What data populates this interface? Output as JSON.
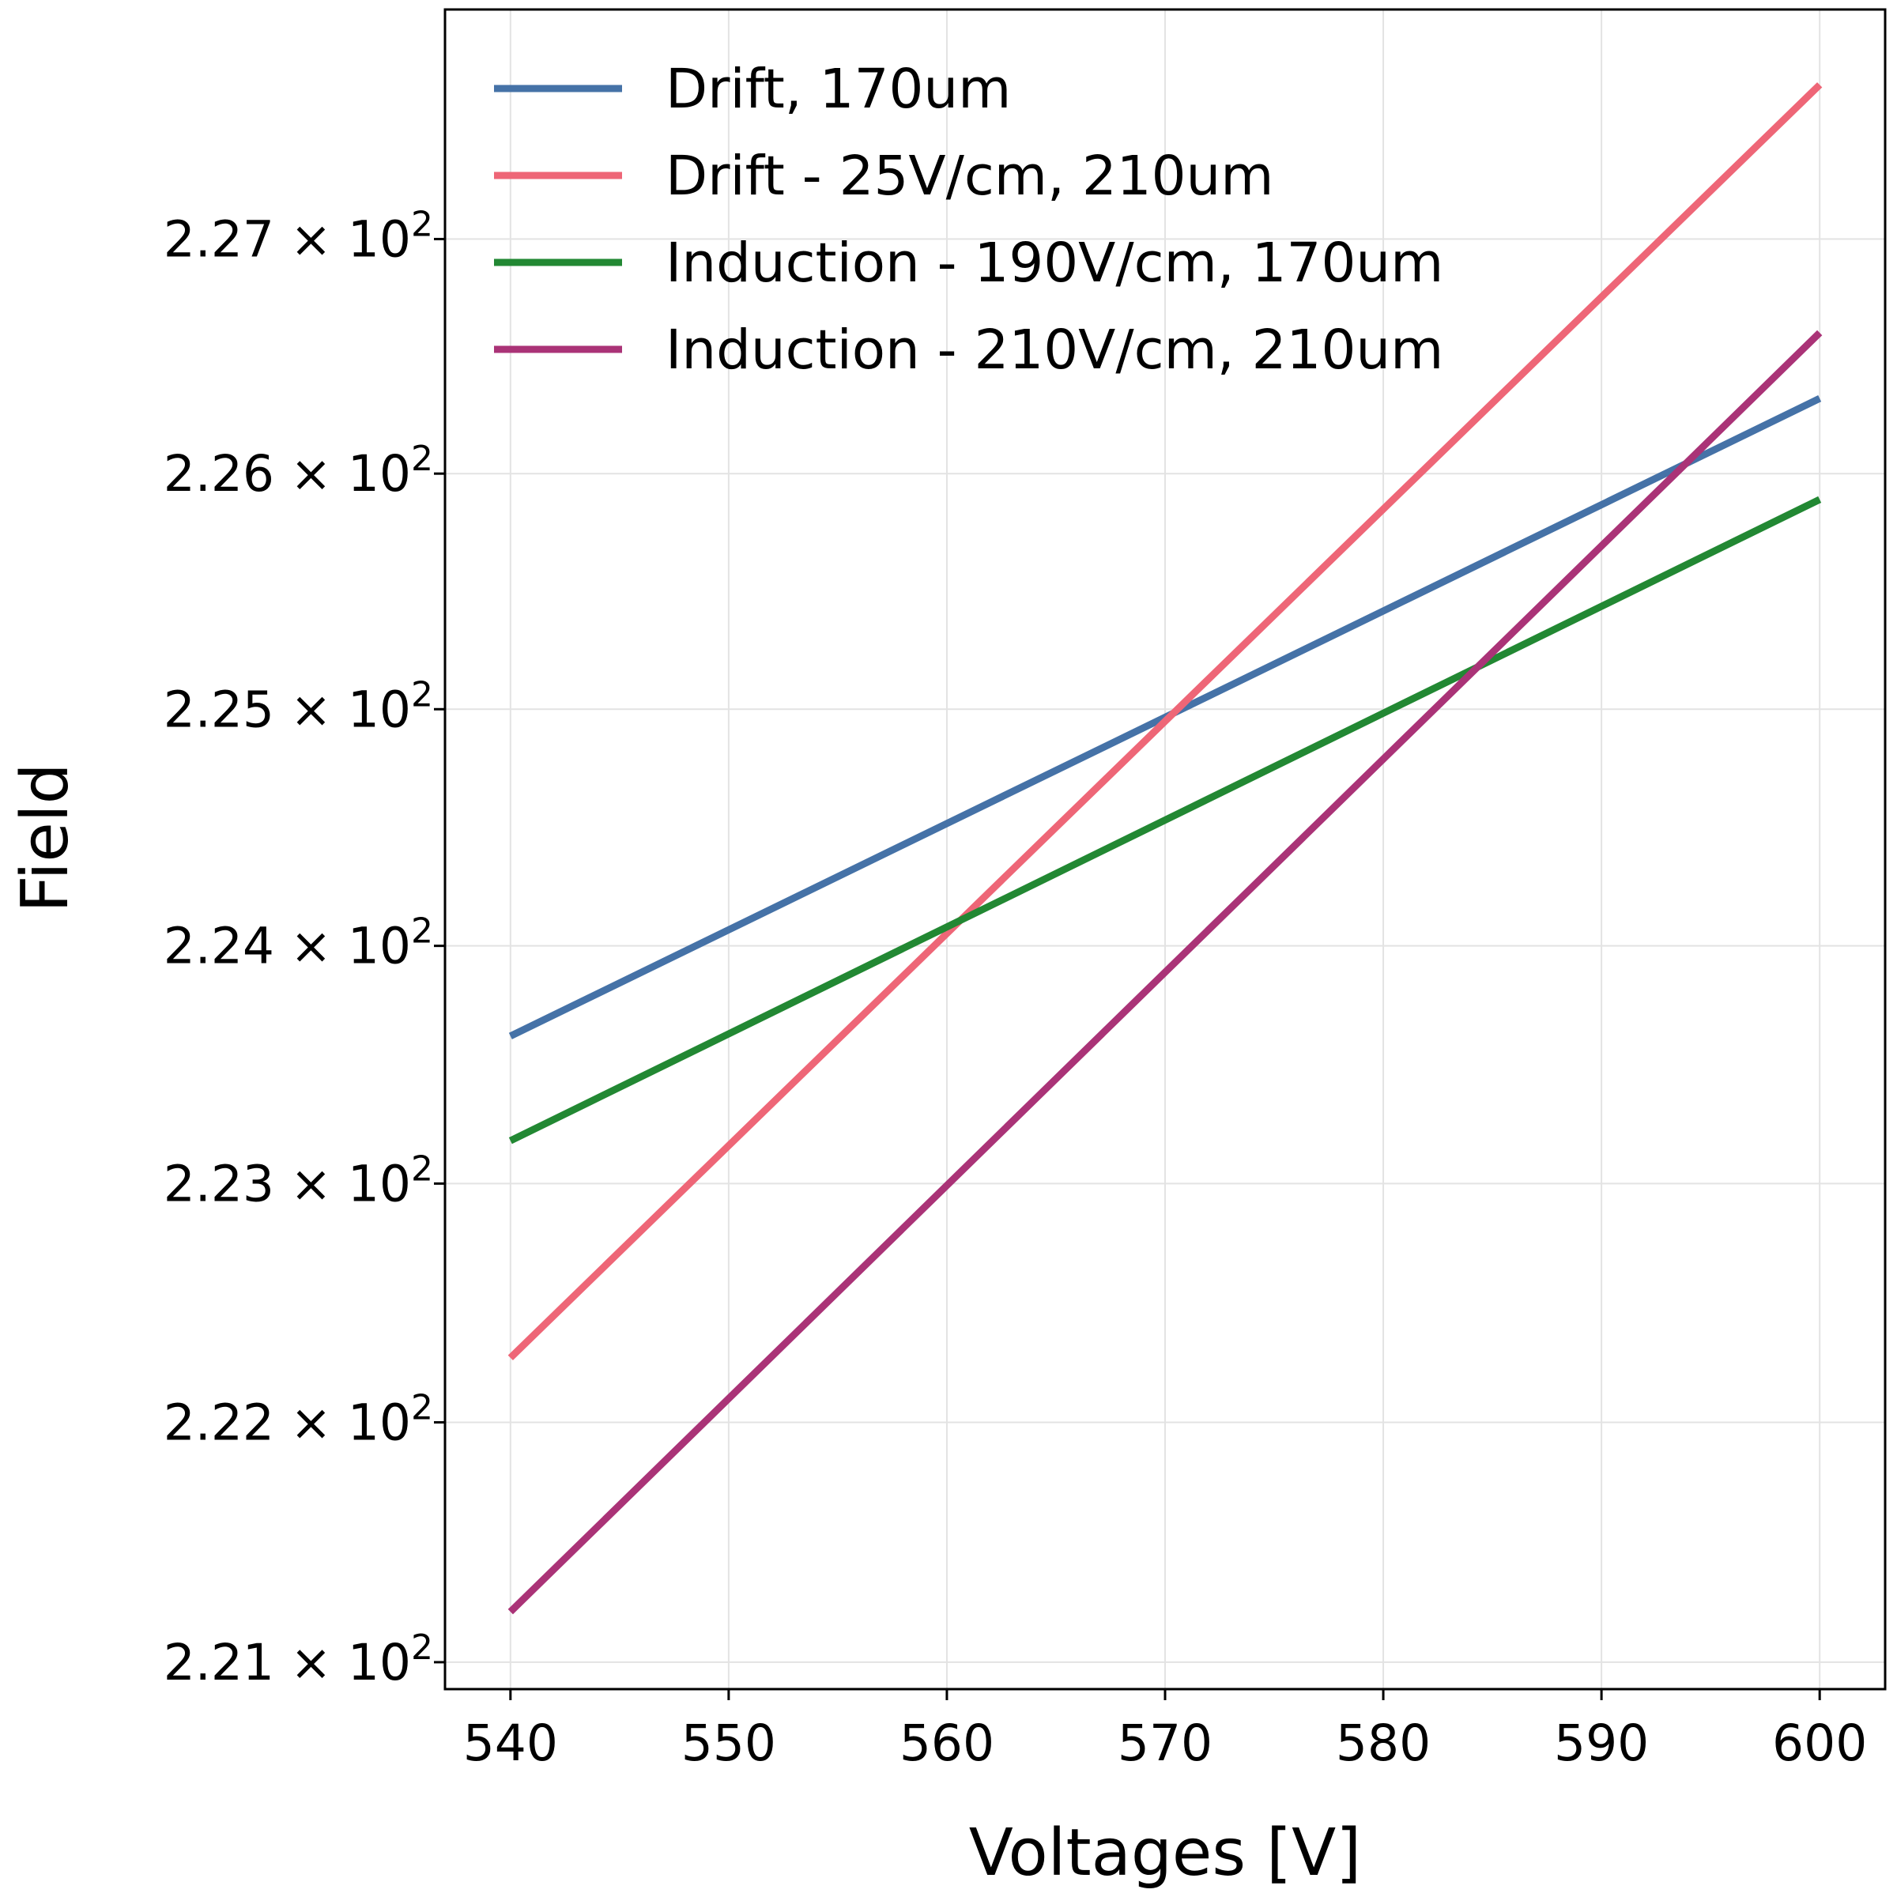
{
  "chart_data": {
    "type": "line",
    "title": "",
    "xlabel": "Voltages [V]",
    "ylabel": "Field",
    "xlim": [
      537,
      603
    ],
    "ylim": [
      220.888,
      227.983
    ],
    "yscale": "log",
    "grid": true,
    "legend_position": "top-left",
    "x_ticks": [
      540,
      550,
      560,
      570,
      580,
      590,
      600
    ],
    "y_ticks": [
      {
        "value": 221,
        "mantissa": "2.21",
        "base": "10",
        "exponent": "2"
      },
      {
        "value": 222,
        "mantissa": "2.22",
        "base": "10",
        "exponent": "2"
      },
      {
        "value": 223,
        "mantissa": "2.23",
        "base": "10",
        "exponent": "2"
      },
      {
        "value": 224,
        "mantissa": "2.24",
        "base": "10",
        "exponent": "2"
      },
      {
        "value": 225,
        "mantissa": "2.25",
        "base": "10",
        "exponent": "2"
      },
      {
        "value": 226,
        "mantissa": "2.26",
        "base": "10",
        "exponent": "2"
      },
      {
        "value": 227,
        "mantissa": "2.27",
        "base": "10",
        "exponent": "2"
      }
    ],
    "series": [
      {
        "name": "Drift, 170um",
        "color": "#4572a7",
        "x": [
          540,
          600
        ],
        "y": [
          223.62,
          226.32
        ]
      },
      {
        "name": "Drift - 25V/cm, 210um",
        "color": "#ee6677",
        "x": [
          540,
          600
        ],
        "y": [
          222.27,
          227.66
        ]
      },
      {
        "name": "Induction - 190V/cm, 170um",
        "color": "#228833",
        "x": [
          540,
          600
        ],
        "y": [
          223.18,
          225.89
        ]
      },
      {
        "name": "Induction - 210V/cm, 210um",
        "color": "#aa3377",
        "x": [
          540,
          600
        ],
        "y": [
          221.21,
          226.6
        ]
      }
    ]
  }
}
